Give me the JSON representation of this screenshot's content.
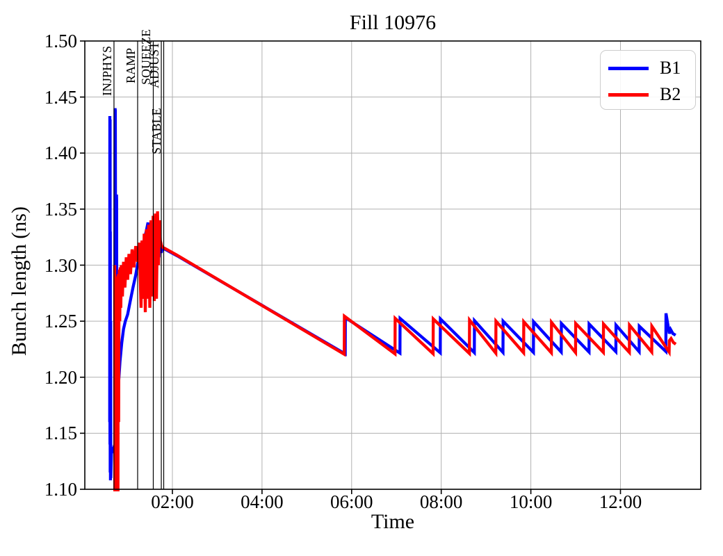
{
  "figure": {
    "title": "Fill 10976",
    "xlabel": "Time",
    "ylabel": "Bunch length (ns)",
    "background": "#ffffff"
  },
  "axes": {
    "x_tick_labels": [
      "02:00",
      "04:00",
      "06:00",
      "08:00",
      "10:00",
      "12:00"
    ],
    "x_tick_hours": [
      2,
      4,
      6,
      8,
      10,
      12
    ],
    "y_tick_labels": [
      "1.10",
      "1.15",
      "1.20",
      "1.25",
      "1.30",
      "1.35",
      "1.40",
      "1.45",
      "1.50"
    ],
    "y_ticks": [
      1.1,
      1.15,
      1.2,
      1.25,
      1.3,
      1.35,
      1.4,
      1.45,
      1.5
    ],
    "x_range_hours": [
      0.04,
      13.8
    ],
    "y_range_ns": [
      1.1,
      1.5
    ],
    "grid": true,
    "grid_color": "#b0b0b0",
    "spine_color": "#000000"
  },
  "beam_modes": [
    {
      "label": "INJPHYS",
      "time_h": 0.696,
      "time_label": "00:42"
    },
    {
      "label": "RAMP",
      "time_h": 1.224,
      "time_label": "01:13"
    },
    {
      "label": "SQUEEZE",
      "time_h": 1.573,
      "time_label": "01:34"
    },
    {
      "label": "ADJUST",
      "time_h": 1.752,
      "time_label": "01:45"
    },
    {
      "label": "STABLE",
      "time_h": 1.806,
      "time_label": "01:48"
    }
  ],
  "legend": {
    "position": "upper right",
    "entries": [
      {
        "label": "B1",
        "color": "#0000ff"
      },
      {
        "label": "B2",
        "color": "#ff0000"
      }
    ]
  },
  "chart_data": {
    "type": "line",
    "title": "Fill 10976",
    "xlabel": "Time",
    "ylabel": "Bunch length (ns)",
    "x_unit": "hours since fill start (tick labels are clock times HH:MM)",
    "xlim_hours": [
      0.04,
      13.8
    ],
    "ylim_ns": [
      1.1,
      1.5
    ],
    "grid": true,
    "legend_position": "upper right",
    "series": [
      {
        "name": "B1",
        "color": "#0000ff",
        "linewidth": 4.3,
        "points": [
          [
            0.6,
            1.16
          ],
          [
            0.603,
            1.433
          ],
          [
            0.606,
            1.14
          ],
          [
            0.609,
            1.43
          ],
          [
            0.612,
            1.115
          ],
          [
            0.615,
            1.33
          ],
          [
            0.618,
            1.108
          ],
          [
            0.622,
            1.25
          ],
          [
            0.626,
            1.11
          ],
          [
            0.64,
            1.132
          ],
          [
            0.7,
            1.138
          ],
          [
            0.716,
            1.14
          ],
          [
            0.72,
            1.44
          ],
          [
            0.726,
            1.438
          ],
          [
            0.729,
            1.363
          ],
          [
            0.737,
            1.36
          ],
          [
            0.741,
            1.104
          ],
          [
            0.748,
            1.1
          ],
          [
            0.752,
            1.363
          ],
          [
            0.756,
            1.358
          ],
          [
            0.76,
            1.148
          ],
          [
            0.77,
            1.165
          ],
          [
            0.8,
            1.196
          ],
          [
            0.83,
            1.214
          ],
          [
            0.87,
            1.231
          ],
          [
            0.91,
            1.243
          ],
          [
            0.95,
            1.25
          ],
          [
            1.0,
            1.256
          ],
          [
            1.06,
            1.268
          ],
          [
            1.12,
            1.28
          ],
          [
            1.18,
            1.291
          ],
          [
            1.224,
            1.301
          ],
          [
            1.28,
            1.309
          ],
          [
            1.33,
            1.316
          ],
          [
            1.38,
            1.324
          ],
          [
            1.42,
            1.331
          ],
          [
            1.455,
            1.338
          ],
          [
            1.47,
            1.318
          ],
          [
            1.49,
            1.332
          ],
          [
            1.51,
            1.304
          ],
          [
            1.53,
            1.33
          ],
          [
            1.55,
            1.305
          ],
          [
            1.575,
            1.333
          ],
          [
            1.6,
            1.303
          ],
          [
            1.62,
            1.33
          ],
          [
            1.65,
            1.305
          ],
          [
            1.67,
            1.328
          ],
          [
            1.7,
            1.307
          ],
          [
            1.72,
            1.322
          ],
          [
            1.75,
            1.311
          ],
          [
            1.78,
            1.316
          ],
          [
            1.82,
            1.3145
          ],
          [
            2.1,
            1.3085
          ],
          [
            5.858,
            1.2208
          ],
          [
            5.861,
            1.2531
          ],
          [
            7.078,
            1.2215
          ],
          [
            7.081,
            1.2525
          ],
          [
            7.978,
            1.2218
          ],
          [
            7.981,
            1.252
          ],
          [
            8.738,
            1.222
          ],
          [
            8.741,
            1.2505
          ],
          [
            9.378,
            1.2222
          ],
          [
            9.381,
            1.25
          ],
          [
            10.058,
            1.2222
          ],
          [
            10.061,
            1.2495
          ],
          [
            10.678,
            1.2225
          ],
          [
            10.681,
            1.248
          ],
          [
            11.298,
            1.2225
          ],
          [
            11.301,
            1.2475
          ],
          [
            11.898,
            1.2228
          ],
          [
            11.901,
            1.2465
          ],
          [
            12.418,
            1.2228
          ],
          [
            12.421,
            1.2455
          ],
          [
            13.013,
            1.223
          ],
          [
            13.017,
            1.257
          ],
          [
            13.09,
            1.239
          ],
          [
            13.12,
            1.2425
          ],
          [
            13.17,
            1.239
          ],
          [
            13.23,
            1.2375
          ]
        ]
      },
      {
        "name": "B2",
        "color": "#ff0000",
        "linewidth": 4.3,
        "points": [
          [
            0.712,
            1.3
          ],
          [
            0.716,
            1.095
          ],
          [
            0.72,
            1.27
          ],
          [
            0.724,
            1.088
          ],
          [
            0.728,
            1.25
          ],
          [
            0.732,
            1.085
          ],
          [
            0.736,
            1.262
          ],
          [
            0.74,
            1.082
          ],
          [
            0.745,
            1.27
          ],
          [
            0.75,
            1.085
          ],
          [
            0.755,
            1.28
          ],
          [
            0.76,
            1.09
          ],
          [
            0.766,
            1.286
          ],
          [
            0.772,
            1.092
          ],
          [
            0.778,
            1.29
          ],
          [
            0.785,
            1.096
          ],
          [
            0.792,
            1.292
          ],
          [
            0.8,
            1.16
          ],
          [
            0.806,
            1.243
          ],
          [
            0.815,
            1.296
          ],
          [
            0.825,
            1.25
          ],
          [
            0.836,
            1.298
          ],
          [
            0.848,
            1.262
          ],
          [
            0.86,
            1.3
          ],
          [
            0.885,
            1.272
          ],
          [
            0.91,
            1.303
          ],
          [
            0.94,
            1.28
          ],
          [
            0.97,
            1.307
          ],
          [
            1.0,
            1.287
          ],
          [
            1.03,
            1.31
          ],
          [
            1.065,
            1.292
          ],
          [
            1.1,
            1.314
          ],
          [
            1.14,
            1.298
          ],
          [
            1.18,
            1.317
          ],
          [
            1.224,
            1.303
          ],
          [
            1.26,
            1.32
          ],
          [
            1.3,
            1.262
          ],
          [
            1.32,
            1.322
          ],
          [
            1.345,
            1.27
          ],
          [
            1.37,
            1.328
          ],
          [
            1.395,
            1.258
          ],
          [
            1.42,
            1.332
          ],
          [
            1.445,
            1.27
          ],
          [
            1.47,
            1.336
          ],
          [
            1.495,
            1.262
          ],
          [
            1.52,
            1.34
          ],
          [
            1.545,
            1.272
          ],
          [
            1.57,
            1.344
          ],
          [
            1.596,
            1.268
          ],
          [
            1.62,
            1.346
          ],
          [
            1.645,
            1.27
          ],
          [
            1.668,
            1.348
          ],
          [
            1.69,
            1.3
          ],
          [
            1.71,
            1.34
          ],
          [
            1.73,
            1.322
          ],
          [
            1.76,
            1.317
          ],
          [
            1.8,
            1.3155
          ],
          [
            1.83,
            1.315
          ],
          [
            2.1,
            1.309
          ],
          [
            5.836,
            1.2205
          ],
          [
            5.839,
            1.2545
          ],
          [
            6.968,
            1.2208
          ],
          [
            6.971,
            1.2525
          ],
          [
            7.818,
            1.221
          ],
          [
            7.821,
            1.252
          ],
          [
            8.628,
            1.2212
          ],
          [
            8.631,
            1.251
          ],
          [
            9.218,
            1.2215
          ],
          [
            9.221,
            1.25
          ],
          [
            9.838,
            1.2218
          ],
          [
            9.841,
            1.2495
          ],
          [
            10.458,
            1.2218
          ],
          [
            10.461,
            1.249
          ],
          [
            10.998,
            1.222
          ],
          [
            11.001,
            1.248
          ],
          [
            11.618,
            1.2222
          ],
          [
            11.621,
            1.2475
          ],
          [
            12.198,
            1.2222
          ],
          [
            12.201,
            1.2465
          ],
          [
            12.698,
            1.2225
          ],
          [
            12.701,
            1.2455
          ],
          [
            13.086,
            1.2225
          ],
          [
            13.09,
            1.2325
          ],
          [
            13.13,
            1.2345
          ],
          [
            13.18,
            1.231
          ],
          [
            13.235,
            1.2295
          ]
        ]
      }
    ]
  }
}
